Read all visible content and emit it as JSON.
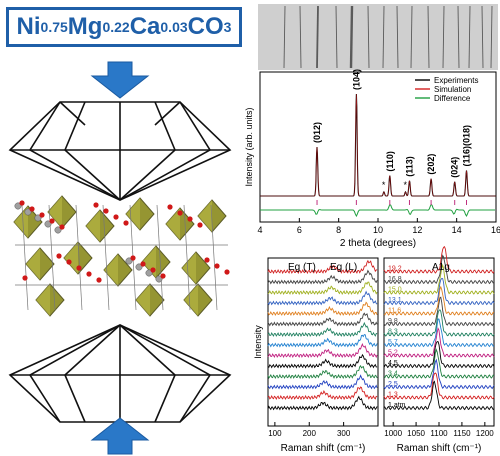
{
  "formula": {
    "parts": [
      {
        "text": "Ni",
        "sub": "0.75"
      },
      {
        "text": "Mg",
        "sub": "0.22"
      },
      {
        "text": "Ca",
        "sub": "0.03"
      },
      {
        "text": "CO",
        "sub": "3"
      }
    ]
  },
  "colors": {
    "title": "#1f5fa8",
    "arrow": "#2a78c8",
    "octahedron": "#8a8a1c",
    "oxygen": "#d01818",
    "carbon": "#a0a0a0"
  },
  "chart_data": [
    {
      "type": "line",
      "xlabel": "2 theta (degrees)",
      "ylabel": "Intensity (arb. units)",
      "xlim": [
        4,
        16
      ],
      "xticks": [
        4,
        6,
        8,
        10,
        12,
        14,
        16
      ],
      "legend": [
        "Experiments",
        "Simulation",
        "Difference"
      ],
      "legend_position": "top-right",
      "series_colors": [
        "#000000",
        "#d42020",
        "#20a040"
      ],
      "peaks": [
        {
          "x": 6.9,
          "height": 0.48,
          "label": "(012)"
        },
        {
          "x": 8.9,
          "height": 1.0,
          "label": "(104)"
        },
        {
          "x": 10.6,
          "height": 0.2,
          "label": "(110)"
        },
        {
          "x": 11.6,
          "height": 0.15,
          "label": "(113)"
        },
        {
          "x": 12.7,
          "height": 0.17,
          "label": "(202)"
        },
        {
          "x": 13.9,
          "height": 0.14,
          "label": "(024)"
        },
        {
          "x": 14.5,
          "height": 0.25,
          "label": "(116)(018)"
        }
      ],
      "impurity_markers": [
        10.3,
        11.4
      ],
      "tick_marks": [
        6.9,
        8.9,
        10.6,
        11.6,
        12.7,
        13.9,
        14.5
      ]
    },
    {
      "type": "line",
      "xlabel": "Raman shift (cm⁻¹)",
      "ylabel": "Intensity",
      "xlim": [
        80,
        400
      ],
      "xticks": [
        100,
        200,
        300
      ],
      "mode_labels": [
        "E_g (T)",
        "E_g (L)"
      ],
      "peaks": [
        240,
        345
      ],
      "pressures": [
        "1 atm",
        "1.3",
        "2.5",
        "3.4",
        "4.5",
        "5.2",
        "5.7",
        "8.3",
        "9.8",
        "11.6",
        "13.1",
        "15.0",
        "16.8",
        "19.2"
      ],
      "series_colors": [
        "#000000",
        "#d42020",
        "#2040c0",
        "#208040",
        "#000000",
        "#c02080",
        "#2080d0",
        "#208060",
        "#404040",
        "#e08020",
        "#3060c0",
        "#a0b020",
        "#404040",
        "#d02020"
      ]
    },
    {
      "type": "line",
      "xlabel": "Raman shift (cm⁻¹)",
      "ylabel": "",
      "xlim": [
        980,
        1220
      ],
      "xticks": [
        1000,
        1050,
        1100,
        1150,
        1200
      ],
      "mode_labels": [
        "A_1g"
      ],
      "peaks": [
        1090
      ],
      "pressures": [
        "1 atm",
        "1.3",
        "2.5",
        "3.4",
        "4.5",
        "5.2",
        "5.7",
        "8.3",
        "9.8",
        "11.6",
        "13.1",
        "15.0",
        "16.8",
        "19.2"
      ],
      "pressure_labels_shown": [
        "1 atm",
        "1.3",
        "2.5",
        "3.4",
        "4.5",
        "5.2",
        "5.7",
        "8.3",
        "9.8",
        "11.6",
        "13.1",
        "15.0",
        "16.8",
        "19.2"
      ]
    }
  ]
}
